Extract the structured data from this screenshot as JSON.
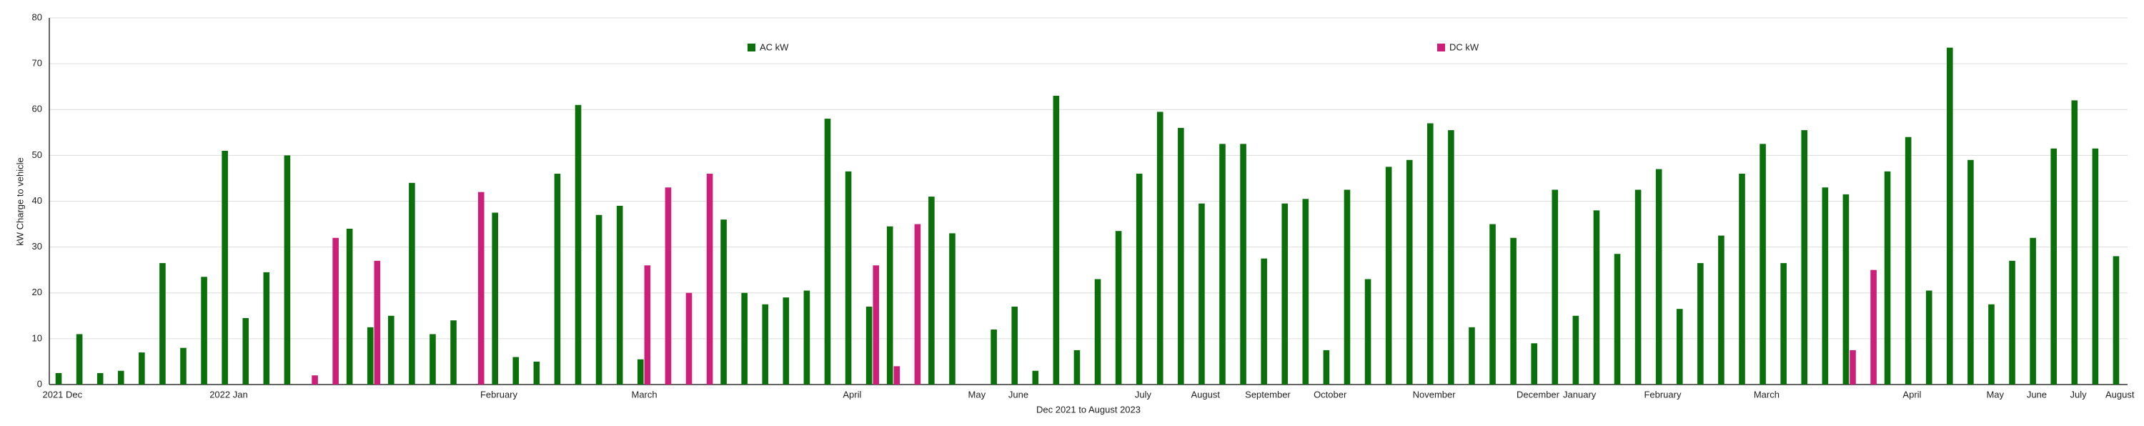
{
  "chart_data": {
    "type": "bar",
    "xlabel": "Dec 2021 to August 2023",
    "ylabel": "kW Charge to vehicle",
    "categories": [
      "2021 Dec",
      null,
      null,
      null,
      null,
      null,
      null,
      null,
      "2022 Jan",
      null,
      null,
      null,
      null,
      null,
      null,
      null,
      null,
      null,
      null,
      null,
      null,
      "February",
      null,
      null,
      null,
      null,
      null,
      null,
      "March",
      null,
      null,
      null,
      null,
      null,
      null,
      null,
      null,
      null,
      "April",
      null,
      null,
      null,
      null,
      null,
      "May",
      null,
      "June",
      null,
      null,
      null,
      null,
      null,
      "July",
      null,
      null,
      "August",
      null,
      null,
      "September",
      null,
      null,
      "October",
      null,
      null,
      null,
      null,
      "November",
      null,
      null,
      null,
      null,
      "December",
      null,
      "January",
      null,
      null,
      null,
      "February",
      null,
      null,
      null,
      null,
      "March",
      null,
      null,
      null,
      null,
      null,
      null,
      "April",
      null,
      null,
      null,
      "May",
      null,
      "June",
      null,
      "July",
      null,
      "August"
    ],
    "series": [
      {
        "name": "AC kW",
        "color": "#0b700b",
        "values": [
          2.5,
          11,
          2.5,
          3,
          7,
          26.5,
          8,
          23.5,
          51,
          14.5,
          24.5,
          50,
          null,
          null,
          34,
          12.5,
          15,
          44,
          11,
          14,
          null,
          37.5,
          6,
          5,
          46,
          61,
          37,
          39,
          5.5,
          null,
          null,
          null,
          36,
          20,
          17.5,
          19,
          20.5,
          58,
          46.5,
          17,
          34.5,
          null,
          41,
          33,
          null,
          12,
          17,
          3,
          63,
          7.5,
          23,
          33.5,
          46,
          59.5,
          56,
          39.5,
          52.5,
          52.5,
          27.5,
          39.5,
          40.5,
          7.5,
          42.5,
          23,
          47.5,
          49,
          57,
          55.5,
          12.5,
          35,
          32,
          9,
          42.5,
          15,
          38,
          28.5,
          42.5,
          47,
          16.5,
          26.5,
          32.5,
          46,
          52.5,
          26.5,
          55.5,
          43,
          41.5,
          null,
          46.5,
          54,
          20.5,
          73.5,
          49,
          17.5,
          27,
          32,
          51.5,
          62,
          51.5,
          28
        ]
      },
      {
        "name": "DC kW",
        "color": "#cc1f7a",
        "values": [
          null,
          null,
          null,
          null,
          null,
          null,
          null,
          null,
          null,
          null,
          null,
          null,
          2,
          32,
          null,
          27,
          null,
          null,
          null,
          null,
          42,
          null,
          null,
          null,
          null,
          null,
          null,
          null,
          26,
          43,
          20,
          46,
          null,
          null,
          null,
          null,
          null,
          null,
          null,
          26,
          4,
          35,
          null,
          null,
          null,
          null,
          null,
          null,
          null,
          null,
          null,
          null,
          null,
          null,
          null,
          null,
          null,
          null,
          null,
          null,
          null,
          null,
          null,
          null,
          null,
          null,
          null,
          null,
          null,
          null,
          null,
          null,
          null,
          null,
          null,
          null,
          null,
          null,
          null,
          null,
          null,
          null,
          null,
          null,
          null,
          null,
          7.5,
          25,
          null,
          null,
          null,
          null,
          null,
          null,
          null,
          null,
          null,
          null,
          null,
          null
        ]
      }
    ],
    "ylim": [
      0,
      80
    ],
    "yticks": [
      0,
      10,
      20,
      30,
      40,
      50,
      60,
      70,
      80
    ],
    "grid": true
  }
}
